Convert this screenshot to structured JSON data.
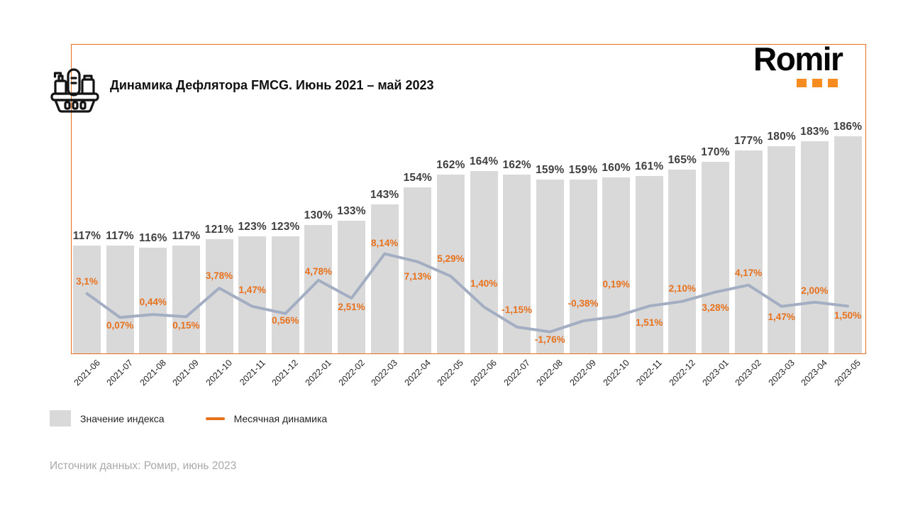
{
  "header": {
    "title": "Динамика Дефлятора FMCG. Июнь 2021 – май 2023",
    "logo_text": "Romir"
  },
  "legend": {
    "bar_label": "Значение индекса",
    "line_label": "Месячная динамика"
  },
  "footer": {
    "source": "Источник данных: Ромир, июнь 2023"
  },
  "colors": {
    "bar_fill": "#d9d9d9",
    "bar_label": "#3f3f3f",
    "line": "#a4aec2",
    "accent_orange": "#e8711c",
    "frame_border": "#e8701a",
    "logo_dot_orange": "#f68b1f",
    "axis_label": "#1f1f1f",
    "source_text": "#a9a9a9"
  },
  "chart_data": {
    "type": "bar",
    "subtype": "bar+line combo",
    "title": "Динамика Дефлятора FMCG. Июнь 2021 – май 2023",
    "xlabel": "",
    "ylabel": "",
    "value_axis_visible": false,
    "grid": false,
    "legend_position": "bottom-left",
    "categories": [
      "2021-06",
      "2021-07",
      "2021-08",
      "2021-09",
      "2021-10",
      "2021-11",
      "2021-12",
      "2022-01",
      "2022-02",
      "2022-03",
      "2022-04",
      "2022-05",
      "2022-06",
      "2022-07",
      "2022-08",
      "2022-09",
      "2022-10",
      "2022-11",
      "2022-12",
      "2023-01",
      "2023-02",
      "2023-03",
      "2023-04",
      "2023-05"
    ],
    "series": [
      {
        "name": "Значение индекса",
        "type": "bar",
        "unit": "%",
        "values": [
          117,
          117,
          116,
          117,
          121,
          123,
          123,
          130,
          133,
          143,
          154,
          162,
          164,
          162,
          159,
          159,
          160,
          161,
          165,
          170,
          177,
          180,
          183,
          186
        ],
        "labels": [
          "117%",
          "117%",
          "116%",
          "117%",
          "121%",
          "123%",
          "123%",
          "130%",
          "133%",
          "143%",
          "154%",
          "162%",
          "164%",
          "162%",
          "159%",
          "159%",
          "160%",
          "161%",
          "165%",
          "170%",
          "177%",
          "180%",
          "183%",
          "186%"
        ]
      },
      {
        "name": "Месячная динамика",
        "type": "line",
        "unit": "%",
        "values": [
          3.1,
          0.07,
          0.44,
          0.15,
          3.78,
          1.47,
          0.56,
          4.78,
          2.51,
          8.14,
          7.13,
          5.29,
          1.4,
          -1.15,
          -1.76,
          -0.38,
          0.19,
          1.51,
          2.1,
          3.28,
          4.17,
          1.47,
          2.0,
          1.5
        ],
        "labels": [
          "3,1%",
          "0,07%",
          "0,44%",
          "0,15%",
          "3,78%",
          "1,47%",
          "0,56%",
          "4,78%",
          "2,51%",
          "8,14%",
          "7,13%",
          "5,29%",
          "1,40%",
          "-1,15%",
          "-1,76%",
          "-0,38%",
          "0,19%",
          "1,51%",
          "2,10%",
          "3,28%",
          "4,17%",
          "1,47%",
          "2,00%",
          "1,50%"
        ],
        "label_dy": [
          -17,
          12,
          -17,
          13,
          -17,
          -23,
          10,
          -12,
          13,
          -15,
          21,
          -24,
          -32,
          -24,
          11,
          -24,
          -45,
          24,
          -18,
          22,
          -17,
          15,
          -16,
          14
        ]
      }
    ]
  }
}
